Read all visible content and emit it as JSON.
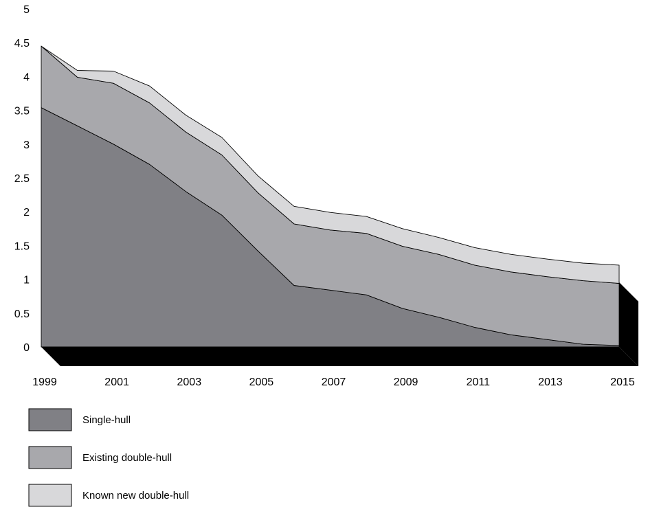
{
  "chart_data": {
    "type": "area",
    "stacked": true,
    "three_d": true,
    "x": [
      1999,
      2000,
      2001,
      2002,
      2003,
      2004,
      2005,
      2006,
      2007,
      2008,
      2009,
      2010,
      2011,
      2012,
      2013,
      2014,
      2015
    ],
    "x_tick_labels": [
      "1999",
      "2001",
      "2003",
      "2005",
      "2007",
      "2009",
      "2011",
      "2013",
      "2015"
    ],
    "y_tick_labels": [
      "0",
      "0.5",
      "1",
      "1.5",
      "2",
      "2.5",
      "3",
      "3.5",
      "4",
      "4.5",
      "5"
    ],
    "ylim": [
      0,
      5
    ],
    "grid": false,
    "legend_position": "bottom-left",
    "series": [
      {
        "name": "Single-hull",
        "color": "#808085",
        "values": [
          3.54,
          3.27,
          3.0,
          2.7,
          2.3,
          1.95,
          1.42,
          0.91,
          0.84,
          0.77,
          0.57,
          0.44,
          0.29,
          0.18,
          0.11,
          0.04,
          0.02
        ]
      },
      {
        "name": "Existing double-hull",
        "color": "#a8a8ac",
        "values": [
          0.91,
          0.72,
          0.9,
          0.91,
          0.88,
          0.89,
          0.86,
          0.91,
          0.89,
          0.91,
          0.92,
          0.93,
          0.92,
          0.93,
          0.93,
          0.94,
          0.92
        ]
      },
      {
        "name": "Known new double-hull",
        "color": "#d8d8da",
        "values": [
          0.0,
          0.1,
          0.18,
          0.25,
          0.25,
          0.26,
          0.25,
          0.26,
          0.26,
          0.25,
          0.26,
          0.25,
          0.26,
          0.26,
          0.26,
          0.26,
          0.27
        ]
      }
    ]
  }
}
